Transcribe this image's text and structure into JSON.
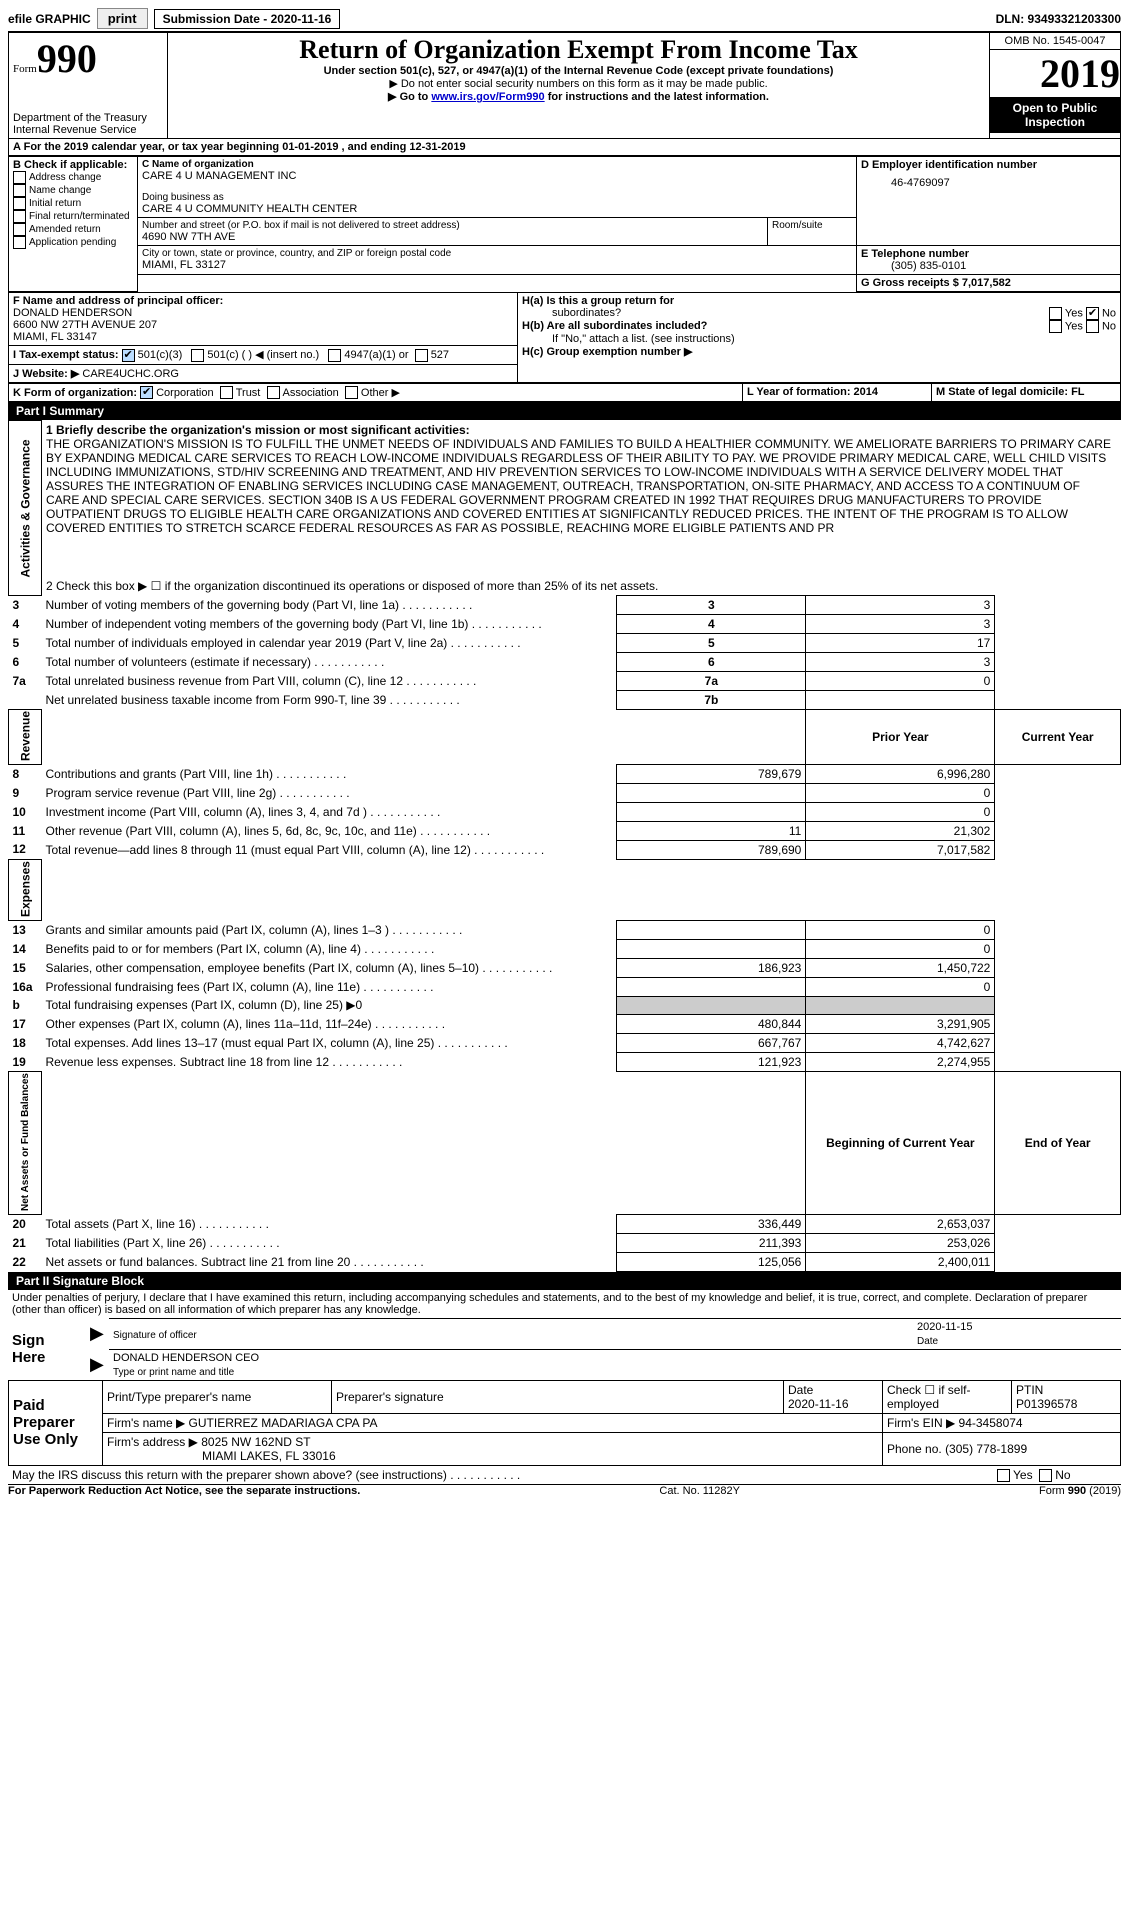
{
  "topbar": {
    "efile": "efile GRAPHIC",
    "print": "print",
    "sub_date_label": "Submission Date - 2020-11-16",
    "dln": "DLN: 93493321203300"
  },
  "header": {
    "form_label": "Form",
    "form_number": "990",
    "dept": "Department of the Treasury\nInternal Revenue Service",
    "title": "Return of Organization Exempt From Income Tax",
    "subtitle": "Under section 501(c), 527, or 4947(a)(1) of the Internal Revenue Code (except private foundations)",
    "bullet1": "▶ Do not enter social security numbers on this form as it may be made public.",
    "bullet2_pre": "▶ Go to ",
    "bullet2_link": "www.irs.gov/Form990",
    "bullet2_post": " for instructions and the latest information.",
    "omb": "OMB No. 1545-0047",
    "year": "2019",
    "open": "Open to Public Inspection",
    "period": "For the 2019 calendar year, or tax year beginning 01-01-2019   , and ending 12-31-2019"
  },
  "boxB": {
    "label": "B Check if applicable:",
    "opts": [
      "Address change",
      "Name change",
      "Initial return",
      "Final return/terminated",
      "Amended return",
      "Application pending"
    ]
  },
  "boxC": {
    "name_lbl": "C Name of organization",
    "name": "CARE 4 U MANAGEMENT INC",
    "dba_lbl": "Doing business as",
    "dba": "CARE 4 U COMMUNITY HEALTH CENTER",
    "street_lbl": "Number and street (or P.O. box if mail is not delivered to street address)",
    "street": "4690 NW 7TH AVE",
    "room_lbl": "Room/suite",
    "city_lbl": "City or town, state or province, country, and ZIP or foreign postal code",
    "city": "MIAMI, FL  33127"
  },
  "boxD": {
    "lbl": "D Employer identification number",
    "val": "46-4769097"
  },
  "boxE": {
    "lbl": "E Telephone number",
    "val": "(305) 835-0101"
  },
  "boxG": {
    "lbl": "G Gross receipts $ 7,017,582"
  },
  "boxF": {
    "lbl": "F  Name and address of principal officer:",
    "line1": "DONALD HENDERSON",
    "line2": "6600 NW 27TH AVENUE 207",
    "line3": "MIAMI, FL  33147"
  },
  "boxH": {
    "a": "H(a)  Is this a group return for",
    "a2": "subordinates?",
    "b": "H(b)  Are all subordinates included?",
    "bnote": "If \"No,\" attach a list. (see instructions)",
    "c": "H(c)  Group exemption number ▶"
  },
  "taxexempt": {
    "lbl": "I   Tax-exempt status:",
    "o1": "501(c)(3)",
    "o2": "501(c) (   ) ◀ (insert no.)",
    "o3": "4947(a)(1) or",
    "o4": "527"
  },
  "website": {
    "lbl": "J   Website: ▶",
    "val": "CARE4UCHC.ORG"
  },
  "boxK": {
    "lbl": "K Form of organization:",
    "o1": "Corporation",
    "o2": "Trust",
    "o3": "Association",
    "o4": "Other ▶"
  },
  "boxL": {
    "lbl": "L Year of formation: 2014"
  },
  "boxM": {
    "lbl": "M State of legal domicile: FL"
  },
  "part1": {
    "hdr": "Part I      Summary",
    "q1": "1  Briefly describe the organization's mission or most significant activities:",
    "mission": "THE ORGANIZATION'S MISSION IS TO FULFILL THE UNMET NEEDS OF INDIVIDUALS AND FAMILIES TO BUILD A HEALTHIER COMMUNITY. WE AMELIORATE BARRIERS TO PRIMARY CARE BY EXPANDING MEDICAL CARE SERVICES TO REACH LOW-INCOME INDIVIDUALS REGARDLESS OF THEIR ABILITY TO PAY. WE PROVIDE PRIMARY MEDICAL CARE, WELL CHILD VISITS INCLUDING IMMUNIZATIONS, STD/HIV SCREENING AND TREATMENT, AND HIV PREVENTION SERVICES TO LOW-INCOME INDIVIDUALS WITH A SERVICE DELIVERY MODEL THAT ASSURES THE INTEGRATION OF ENABLING SERVICES INCLUDING CASE MANAGEMENT, OUTREACH, TRANSPORTATION, ON-SITE PHARMACY, AND ACCESS TO A CONTINUUM OF CARE AND SPECIAL CARE SERVICES. SECTION 340B IS A US FEDERAL GOVERNMENT PROGRAM CREATED IN 1992 THAT REQUIRES DRUG MANUFACTURERS TO PROVIDE OUTPATIENT DRUGS TO ELIGIBLE HEALTH CARE ORGANIZATIONS AND COVERED ENTITIES AT SIGNIFICANTLY REDUCED PRICES. THE INTENT OF THE PROGRAM IS TO ALLOW COVERED ENTITIES TO STRETCH SCARCE FEDERAL RESOURCES AS FAR AS POSSIBLE, REACHING MORE ELIGIBLE PATIENTS AND PR",
    "q2": "2   Check this box ▶ ☐ if the organization discontinued its operations or disposed of more than 25% of its net assets.",
    "lines": [
      {
        "n": "3",
        "t": "Number of voting members of the governing body (Part VI, line 1a)",
        "box": "3",
        "v": "3"
      },
      {
        "n": "4",
        "t": "Number of independent voting members of the governing body (Part VI, line 1b)",
        "box": "4",
        "v": "3"
      },
      {
        "n": "5",
        "t": "Total number of individuals employed in calendar year 2019 (Part V, line 2a)",
        "box": "5",
        "v": "17"
      },
      {
        "n": "6",
        "t": "Total number of volunteers (estimate if necessary)",
        "box": "6",
        "v": "3"
      },
      {
        "n": "7a",
        "t": "Total unrelated business revenue from Part VIII, column (C), line 12",
        "box": "7a",
        "v": "0"
      },
      {
        "n": "",
        "t": "Net unrelated business taxable income from Form 990-T, line 39",
        "box": "7b",
        "v": ""
      }
    ],
    "col_prior": "Prior Year",
    "col_current": "Current Year",
    "revenue": [
      {
        "n": "8",
        "t": "Contributions and grants (Part VIII, line 1h)",
        "p": "789,679",
        "c": "6,996,280"
      },
      {
        "n": "9",
        "t": "Program service revenue (Part VIII, line 2g)",
        "p": "",
        "c": "0"
      },
      {
        "n": "10",
        "t": "Investment income (Part VIII, column (A), lines 3, 4, and 7d )",
        "p": "",
        "c": "0"
      },
      {
        "n": "11",
        "t": "Other revenue (Part VIII, column (A), lines 5, 6d, 8c, 9c, 10c, and 11e)",
        "p": "11",
        "c": "21,302"
      },
      {
        "n": "12",
        "t": "Total revenue—add lines 8 through 11 (must equal Part VIII, column (A), line 12)",
        "p": "789,690",
        "c": "7,017,582"
      }
    ],
    "expenses": [
      {
        "n": "13",
        "t": "Grants and similar amounts paid (Part IX, column (A), lines 1–3 )",
        "p": "",
        "c": "0"
      },
      {
        "n": "14",
        "t": "Benefits paid to or for members (Part IX, column (A), line 4)",
        "p": "",
        "c": "0"
      },
      {
        "n": "15",
        "t": "Salaries, other compensation, employee benefits (Part IX, column (A), lines 5–10)",
        "p": "186,923",
        "c": "1,450,722"
      },
      {
        "n": "16a",
        "t": "Professional fundraising fees (Part IX, column (A), line 11e)",
        "p": "",
        "c": "0"
      },
      {
        "n": "b",
        "t": "Total fundraising expenses (Part IX, column (D), line 25) ▶0",
        "p": "SHADE",
        "c": "SHADE"
      },
      {
        "n": "17",
        "t": "Other expenses (Part IX, column (A), lines 11a–11d, 11f–24e)",
        "p": "480,844",
        "c": "3,291,905"
      },
      {
        "n": "18",
        "t": "Total expenses. Add lines 13–17 (must equal Part IX, column (A), line 25)",
        "p": "667,767",
        "c": "4,742,627"
      },
      {
        "n": "19",
        "t": "Revenue less expenses. Subtract line 18 from line 12",
        "p": "121,923",
        "c": "2,274,955"
      }
    ],
    "col_begin": "Beginning of Current Year",
    "col_end": "End of Year",
    "netassets": [
      {
        "n": "20",
        "t": "Total assets (Part X, line 16)",
        "p": "336,449",
        "c": "2,653,037"
      },
      {
        "n": "21",
        "t": "Total liabilities (Part X, line 26)",
        "p": "211,393",
        "c": "253,026"
      },
      {
        "n": "22",
        "t": "Net assets or fund balances. Subtract line 21 from line 20",
        "p": "125,056",
        "c": "2,400,011"
      }
    ]
  },
  "part2": {
    "hdr": "Part II     Signature Block",
    "decl": "Under penalties of perjury, I declare that I have examined this return, including accompanying schedules and statements, and to the best of my knowledge and belief, it is true, correct, and complete. Declaration of preparer (other than officer) is based on all information of which preparer has any knowledge.",
    "sign_here": "Sign Here",
    "sig_officer": "Signature of officer",
    "sig_date": "2020-11-15",
    "date_lbl": "Date",
    "officer_name": "DONALD HENDERSON  CEO",
    "type_name": "Type or print name and title",
    "paid_prep": "Paid Preparer Use Only",
    "pt_name_lbl": "Print/Type preparer's name",
    "pt_sig_lbl": "Preparer's signature",
    "pt_date_lbl": "Date",
    "pt_date": "2020-11-16",
    "se_lbl": "Check ☐ if self-employed",
    "ptin_lbl": "PTIN",
    "ptin": "P01396578",
    "firm_name_lbl": "Firm's name    ▶",
    "firm_name": "GUTIERREZ MADARIAGA CPA PA",
    "ein_lbl": "Firm's EIN ▶",
    "ein": "94-3458074",
    "firm_addr_lbl": "Firm's address ▶",
    "firm_addr": "8025 NW 162ND ST",
    "firm_city": "MIAMI LAKES, FL  33016",
    "phone_lbl": "Phone no.",
    "phone": "(305) 778-1899",
    "discuss": "May the IRS discuss this return with the preparer shown above? (see instructions)",
    "yes": "Yes",
    "no": "No"
  },
  "footer": {
    "pra": "For Paperwork Reduction Act Notice, see the separate instructions.",
    "cat": "Cat. No. 11282Y",
    "form": "Form 990 (2019)"
  },
  "yesno": {
    "yes": "Yes",
    "no": "No"
  },
  "section_labels": {
    "activities": "Activities & Governance",
    "revenue": "Revenue",
    "expenses": "Expenses",
    "netassets": "Net Assets or Fund Balances"
  }
}
